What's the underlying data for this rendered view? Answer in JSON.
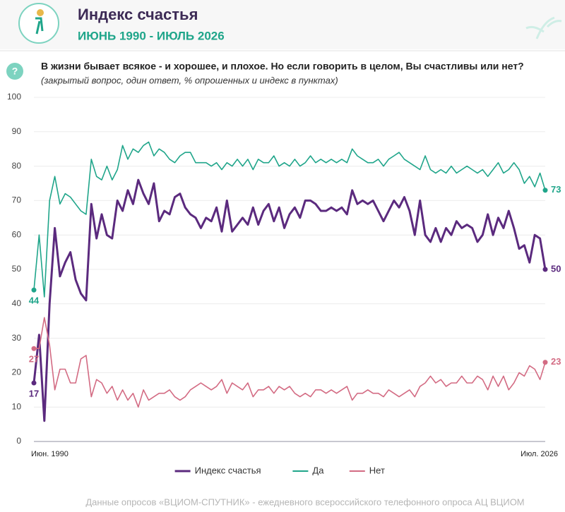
{
  "header": {
    "title": "Индекс счастья",
    "subtitle": "ИЮНЬ 1990 - ИЮЛЬ 2026"
  },
  "question": {
    "text": "В жизни бывает всякое - и хорошее, и плохое. Но если говорить в целом, Вы счастливы  или нет?",
    "note": "(закрытый вопрос, один ответ, % опрошенных и индекс в пунктах)"
  },
  "chart_data": {
    "type": "line",
    "categories": [
      "Июн. 1990",
      null,
      null,
      null,
      null,
      null,
      null,
      null,
      null,
      null,
      null,
      null,
      null,
      null,
      null,
      null,
      null,
      null,
      null,
      null,
      null,
      null,
      null,
      null,
      null,
      null,
      null,
      null,
      null,
      null,
      null,
      null,
      null,
      null,
      null,
      null,
      null,
      null,
      null,
      null,
      null,
      null,
      null,
      null,
      null,
      null,
      null,
      null,
      null,
      null,
      null,
      null,
      null,
      null,
      null,
      null,
      null,
      null,
      null,
      null,
      null,
      null,
      null,
      null,
      null,
      null,
      null,
      null,
      null,
      null,
      null,
      null,
      null,
      null,
      null,
      null,
      null,
      null,
      null,
      null,
      null,
      null,
      null,
      null,
      null,
      null,
      null,
      null,
      null,
      null,
      null,
      null,
      null,
      null,
      null,
      null,
      null,
      null,
      "Июл. 2026"
    ],
    "series": [
      {
        "name": "Индекс счастья",
        "color": "#5b2a7e",
        "values": [
          17,
          31,
          6,
          40,
          62,
          48,
          52,
          55,
          47,
          43,
          41,
          69,
          59,
          66,
          60,
          59,
          70,
          67,
          73,
          69,
          76,
          72,
          69,
          75,
          64,
          67,
          66,
          71,
          72,
          68,
          66,
          65,
          62,
          65,
          64,
          68,
          61,
          70,
          61,
          63,
          65,
          63,
          68,
          63,
          67,
          69,
          64,
          68,
          62,
          66,
          68,
          65,
          70,
          70,
          69,
          67,
          67,
          68,
          67,
          68,
          66,
          73,
          69,
          70,
          69,
          70,
          67,
          64,
          67,
          70,
          68,
          71,
          67,
          60,
          70,
          60,
          58,
          62,
          58,
          62,
          60,
          64,
          62,
          63,
          62,
          58,
          60,
          66,
          60,
          65,
          62,
          67,
          62,
          56,
          57,
          52,
          60,
          59,
          50
        ]
      },
      {
        "name": "Да",
        "color": "#1fa58a",
        "values": [
          44,
          60,
          42,
          70,
          77,
          69,
          72,
          71,
          69,
          67,
          66,
          82,
          77,
          76,
          80,
          76,
          79,
          86,
          82,
          85,
          84,
          86,
          87,
          83,
          85,
          84,
          82,
          81,
          83,
          84,
          84,
          81,
          81,
          81,
          80,
          81,
          79,
          81,
          80,
          82,
          80,
          82,
          79,
          82,
          81,
          81,
          83,
          80,
          81,
          80,
          82,
          80,
          81,
          83,
          81,
          82,
          81,
          82,
          81,
          82,
          81,
          85,
          83,
          82,
          81,
          81,
          82,
          80,
          82,
          83,
          84,
          82,
          81,
          80,
          79,
          83,
          79,
          78,
          79,
          78,
          80,
          78,
          79,
          80,
          79,
          78,
          79,
          77,
          79,
          81,
          78,
          79,
          81,
          79,
          75,
          77,
          74,
          78,
          73
        ]
      },
      {
        "name": "Нет",
        "color": "#d36b83",
        "values": [
          27,
          27,
          36,
          28,
          15,
          21,
          21,
          17,
          17,
          24,
          25,
          13,
          18,
          17,
          14,
          16,
          12,
          15,
          12,
          14,
          10,
          15,
          12,
          13,
          14,
          14,
          15,
          13,
          12,
          13,
          15,
          16,
          17,
          16,
          15,
          16,
          18,
          14,
          17,
          16,
          15,
          17,
          13,
          15,
          15,
          16,
          14,
          16,
          15,
          16,
          14,
          13,
          14,
          13,
          15,
          15,
          14,
          15,
          14,
          15,
          16,
          12,
          14,
          14,
          15,
          14,
          14,
          13,
          15,
          14,
          13,
          14,
          15,
          13,
          16,
          17,
          19,
          17,
          18,
          16,
          17,
          17,
          19,
          17,
          17,
          19,
          18,
          15,
          19,
          16,
          19,
          15,
          17,
          20,
          19,
          22,
          21,
          18,
          23
        ]
      }
    ],
    "ylim": [
      0,
      100
    ],
    "yticks": [
      0,
      10,
      20,
      30,
      40,
      50,
      60,
      70,
      80,
      90,
      100
    ],
    "grid": true,
    "legend": "bottom"
  },
  "footer": {
    "source": "Данные опросов «ВЦИОМ-СПУТНИК» - ежедневного всероссийского телефонного опроса АЦ ВЦИОМ"
  }
}
